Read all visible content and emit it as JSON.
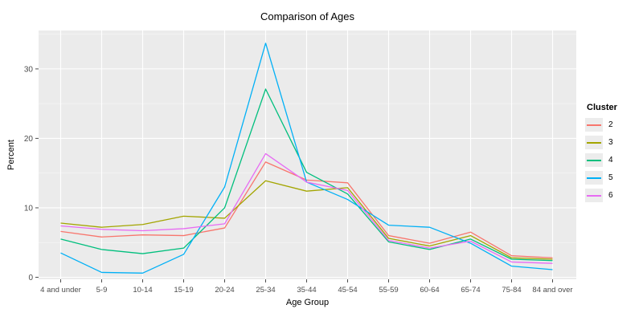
{
  "chart_data": {
    "type": "line",
    "title": "Comparison of Ages",
    "xlabel": "Age Group",
    "ylabel": "Percent",
    "legend_title": "Cluster",
    "legend_position": "right",
    "categories": [
      "4 and under",
      "5-9",
      "10-14",
      "15-19",
      "20-24",
      "25-34",
      "35-44",
      "45-54",
      "55-59",
      "60-64",
      "65-74",
      "75-84",
      "84 and over"
    ],
    "yticks": [
      0,
      10,
      20,
      30
    ],
    "minor_yticks": [
      5,
      15,
      25,
      35
    ],
    "ylim": [
      0,
      35.5
    ],
    "grid": "white major+minor horizontal, white major vertical on gray panel",
    "series": [
      {
        "name": "2",
        "color": "#F8766D",
        "values": [
          6.6,
          5.8,
          6.1,
          6.0,
          7.1,
          16.6,
          14.0,
          13.6,
          6.0,
          4.9,
          6.5,
          3.1,
          2.8
        ]
      },
      {
        "name": "3",
        "color": "#A3A500",
        "values": [
          7.8,
          7.2,
          7.6,
          8.8,
          8.5,
          13.9,
          12.4,
          12.9,
          5.6,
          4.5,
          6.0,
          2.8,
          2.6
        ]
      },
      {
        "name": "4",
        "color": "#00BF7D",
        "values": [
          5.5,
          4.0,
          3.4,
          4.2,
          10.0,
          27.1,
          15.1,
          12.0,
          5.1,
          4.0,
          5.5,
          2.6,
          2.4
        ]
      },
      {
        "name": "5",
        "color": "#00B0F6",
        "values": [
          3.5,
          0.7,
          0.6,
          3.3,
          13.0,
          33.7,
          13.7,
          11.2,
          7.5,
          7.2,
          4.9,
          1.6,
          1.1
        ]
      },
      {
        "name": "6",
        "color": "#E76BF3",
        "values": [
          7.4,
          6.9,
          6.7,
          7.0,
          7.7,
          17.8,
          13.7,
          12.5,
          5.3,
          4.2,
          5.2,
          2.2,
          2.0
        ]
      }
    ]
  },
  "colors": {
    "page_bg": "#FFFFFF",
    "panel_bg": "#EBEBEB",
    "grid": "#FFFFFF",
    "tick_text": "#4D4D4D",
    "tick_mark": "#4D4D4D",
    "axis_text": "#000000",
    "legend_key_bg": "#ECECEC"
  }
}
